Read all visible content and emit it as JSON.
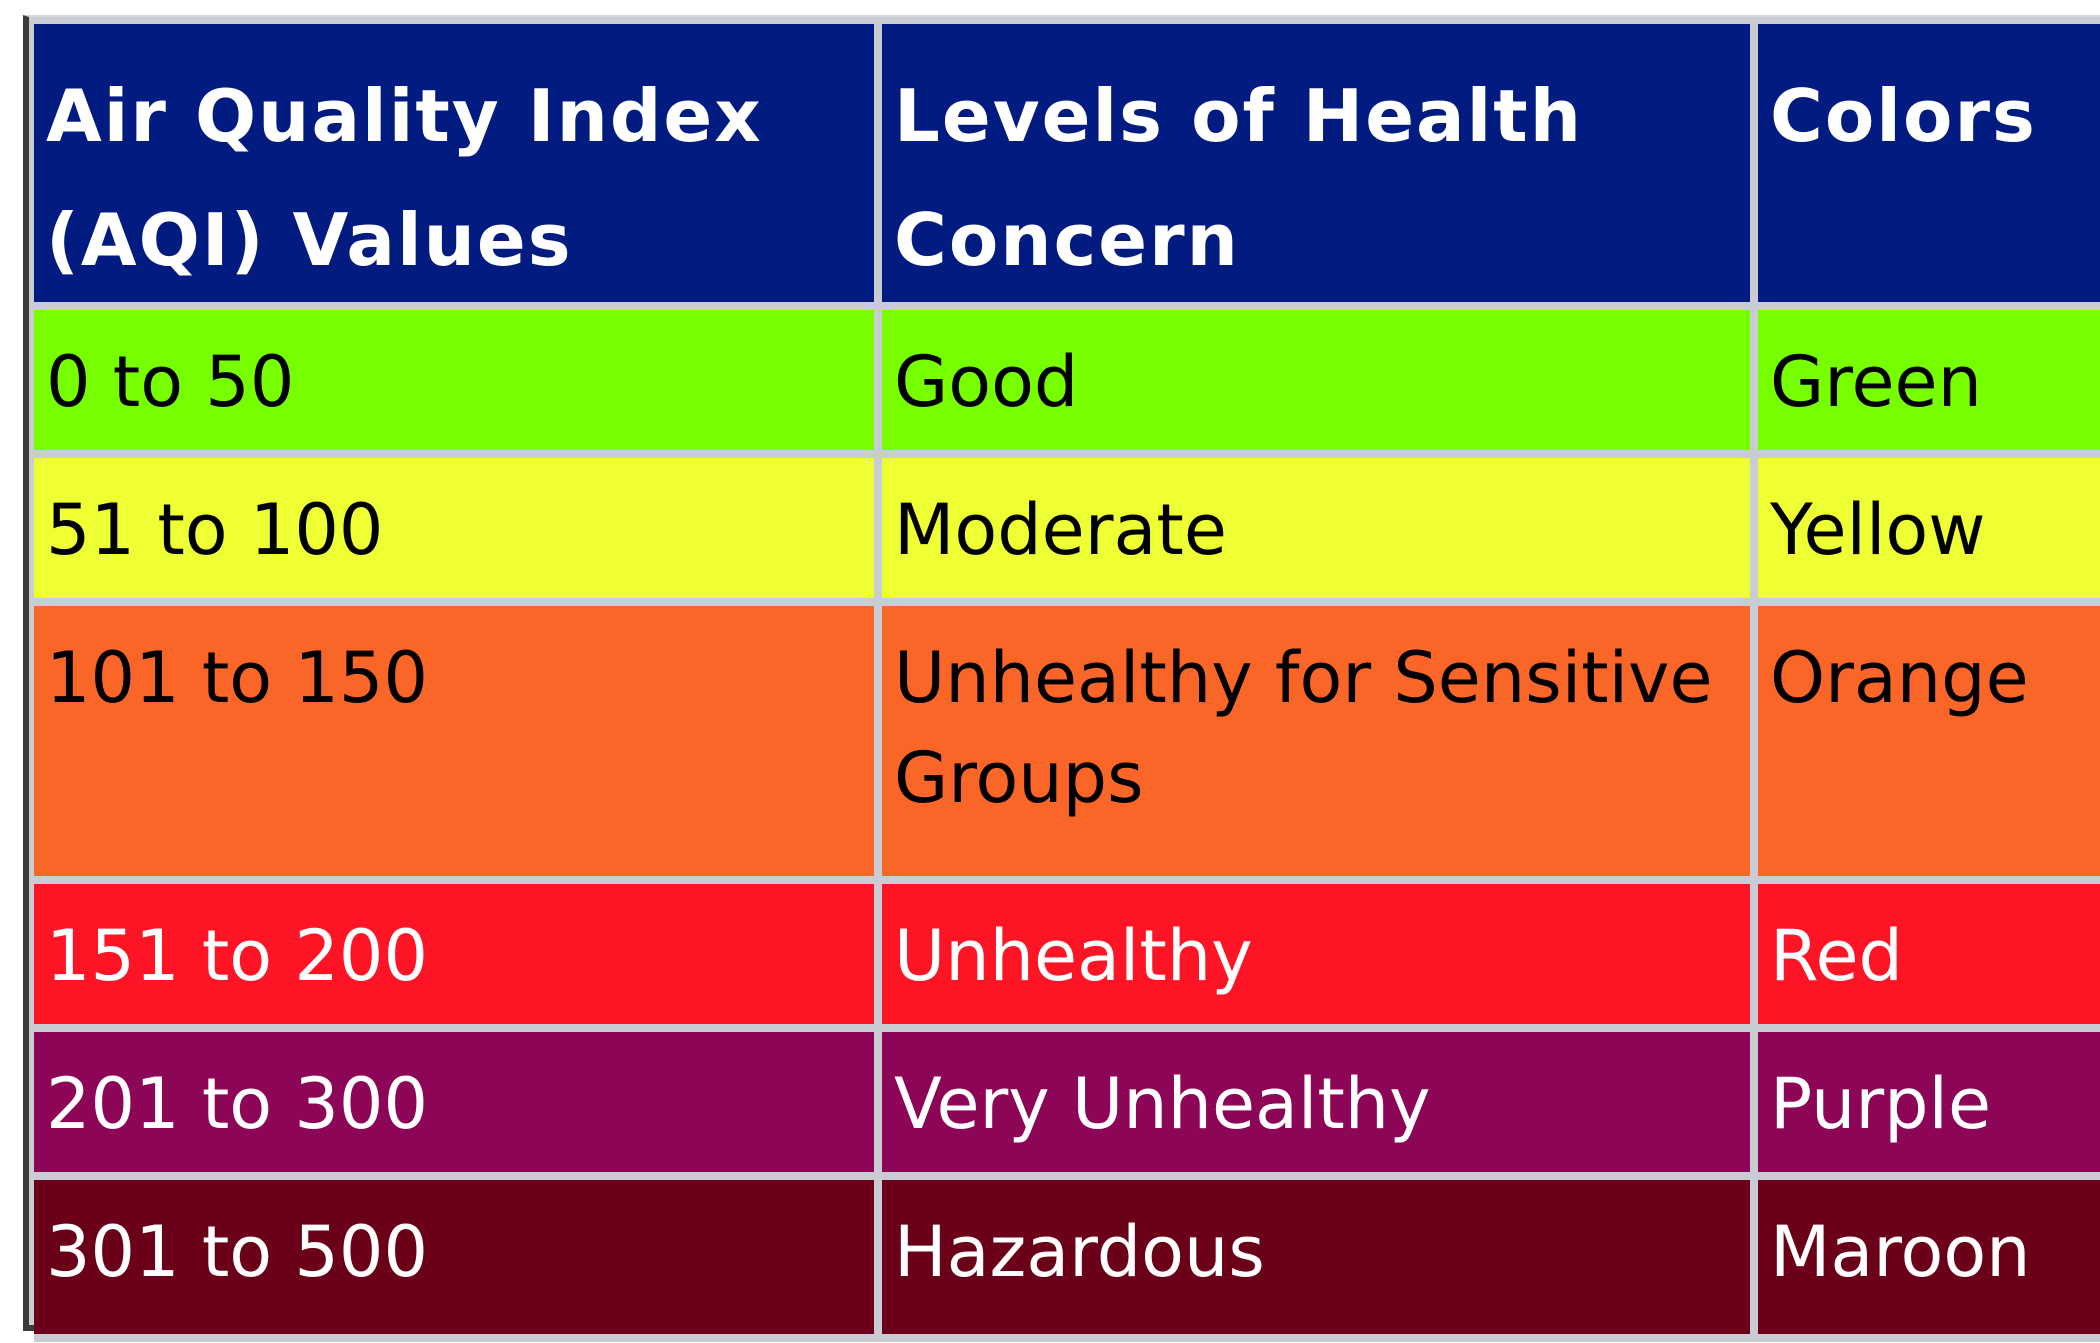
{
  "table": {
    "headers": [
      "Air Quality Index (AQI) Values",
      "Levels of Health Concern",
      "Colors"
    ],
    "rows": [
      {
        "range": "0 to 50",
        "level": "Good",
        "color": "Green",
        "bg": "#77ff00",
        "fg": "#000000"
      },
      {
        "range": "51 to 100",
        "level": "Moderate",
        "color": "Yellow",
        "bg": "#eeff33",
        "fg": "#000000"
      },
      {
        "range": "101 to 150",
        "level": "Unhealthy for Sensitive Groups",
        "color": "Orange",
        "bg": "#fa6528",
        "fg": "#000000"
      },
      {
        "range": "151 to 200",
        "level": "Unhealthy",
        "color": "Red",
        "bg": "#fe1525",
        "fg": "#ffffff"
      },
      {
        "range": "201 to 300",
        "level": "Very Unhealthy",
        "color": "Purple",
        "bg": "#8c0556",
        "fg": "#ffffff"
      },
      {
        "range": "301 to 500",
        "level": "Hazardous",
        "color": "Maroon",
        "bg": "#6a0118",
        "fg": "#ffffff"
      }
    ]
  }
}
